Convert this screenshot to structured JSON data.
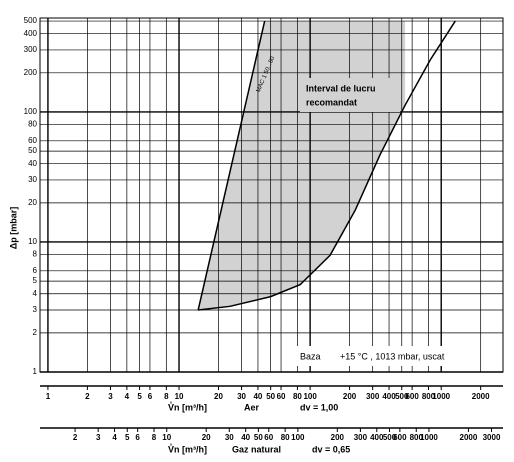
{
  "chart_data": {
    "type": "line",
    "log_x": true,
    "log_y": true,
    "grid": true,
    "ylabel": "Δp [mbar]",
    "ylim": [
      1,
      528
    ],
    "yticks": [
      1,
      2,
      3,
      4,
      5,
      6,
      8,
      10,
      20,
      30,
      40,
      50,
      60,
      80,
      100,
      200,
      300,
      400,
      500
    ],
    "xlim": [
      0.87,
      2960
    ],
    "xticks": [
      1,
      2,
      3,
      4,
      5,
      6,
      8,
      10,
      20,
      30,
      40,
      50,
      60,
      80,
      100,
      200,
      300,
      400,
      500,
      600,
      800,
      1000,
      2000
    ],
    "xlabel": "V̊n [m³/h]",
    "xnotes": [
      "Aer",
      "dv = 1,00"
    ],
    "x2lim": [
      1.08,
      3670
    ],
    "x2ticks": [
      2,
      3,
      4,
      5,
      6,
      8,
      10,
      20,
      30,
      40,
      50,
      60,
      80,
      100,
      200,
      300,
      400,
      500,
      600,
      800,
      1000,
      2000,
      3000
    ],
    "x2label": "V̊n [m³/h]",
    "x2notes": [
      "Gaz natural",
      "dv = 0,65"
    ],
    "series": [
      {
        "kind": "area",
        "color": "#d2d2d2",
        "x": [
          14,
          45,
          530,
          531,
          342,
          221,
          142,
          84,
          50,
          24.5,
          14
        ],
        "y": [
          3,
          500,
          500,
          113,
          47,
          17.6,
          7.9,
          4.7,
          3.8,
          3.2,
          3
        ]
      },
      {
        "kind": "line",
        "color": "#000000",
        "x": [
          14,
          45
        ],
        "y": [
          3,
          500
        ]
      },
      {
        "kind": "line",
        "color": "#000000",
        "x": [
          14,
          24.5,
          50,
          84,
          142,
          221,
          342,
          531,
          824,
          1280
        ],
        "y": [
          3,
          3.2,
          3.8,
          4.7,
          7.9,
          17.6,
          47,
          113,
          251,
          500
        ]
      }
    ],
    "annotation": [
      "Interval de lucru",
      "recomandat"
    ],
    "line_label": "MAC 1 50...80",
    "base_note": [
      "Baza",
      "+15 °C , 1013 mbar, uscat"
    ]
  }
}
